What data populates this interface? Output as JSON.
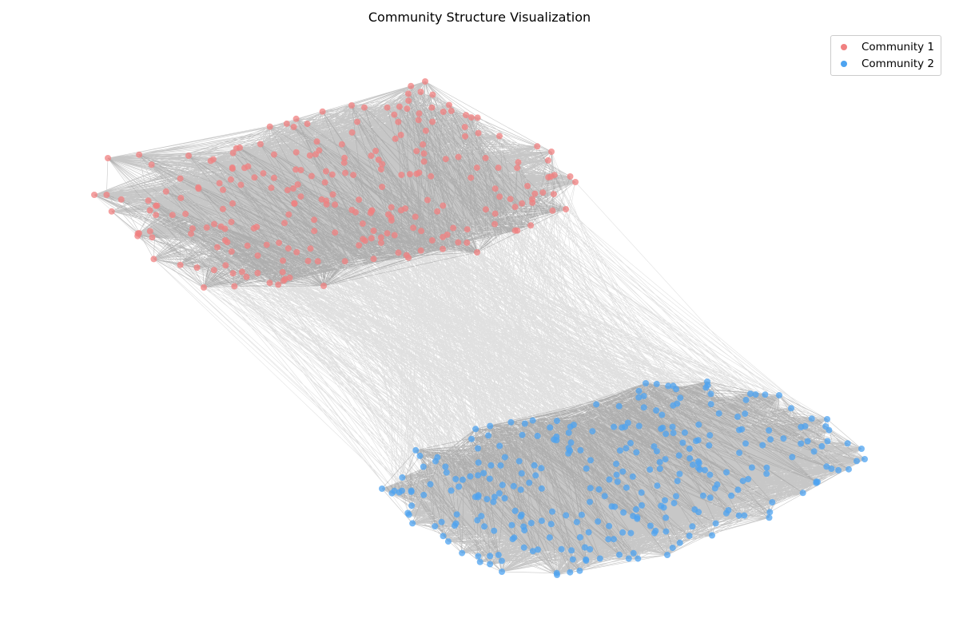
{
  "chart_data": {
    "type": "network",
    "title": "Community Structure Visualization",
    "xlabel": "",
    "ylabel": "",
    "axes": "off",
    "grid": false,
    "legend_position": "top-right",
    "series": [
      {
        "name": "Community 1",
        "color": "#f08080",
        "node_count_approx": 250
      },
      {
        "name": "Community 2",
        "color": "#4da3f0",
        "node_count_approx": 300
      }
    ],
    "edge_color": "#000000",
    "description": ""
  }
}
